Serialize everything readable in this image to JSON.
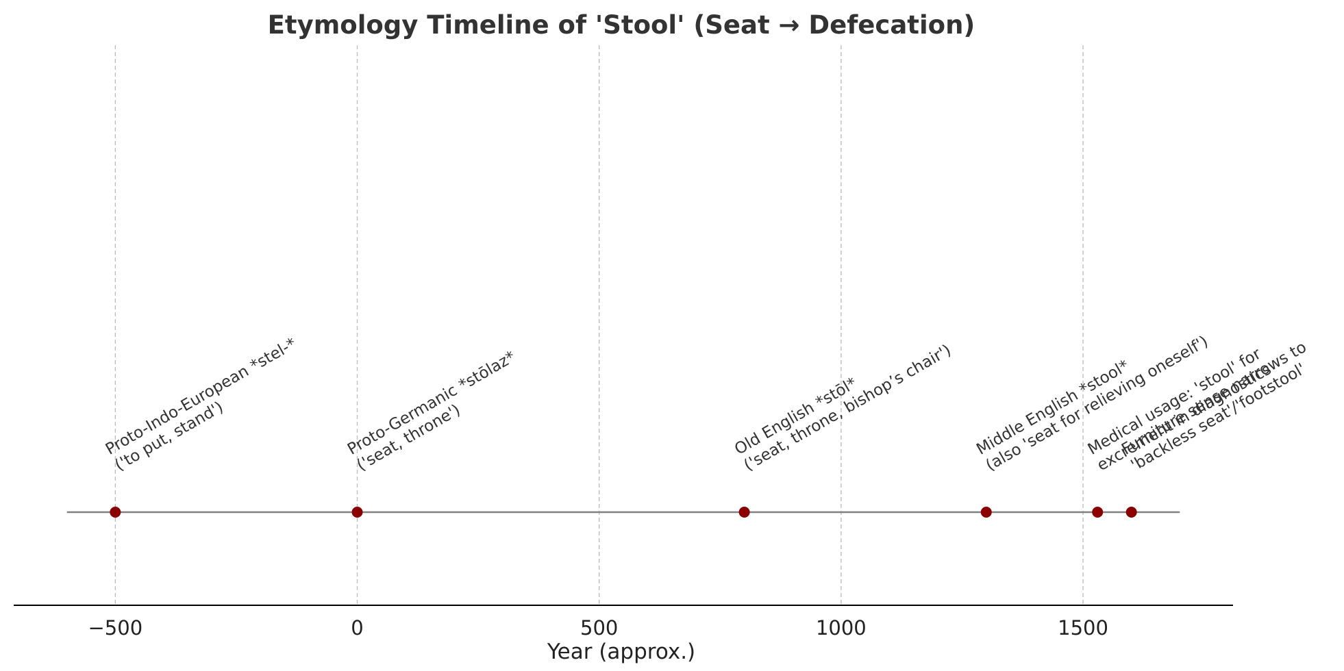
{
  "chart_data": {
    "type": "scatter",
    "title": "Etymology Timeline of 'Stool' (Seat → Defecation)",
    "xlabel": "Year (approx.)",
    "ylabel": "",
    "xlim": [
      -710,
      1810
    ],
    "xticks": [
      -500,
      0,
      500,
      1000,
      1500
    ],
    "xtick_labels": [
      "−500",
      "0",
      "500",
      "1000",
      "1500"
    ],
    "timeline_range": [
      -600,
      1700
    ],
    "grid": "vertical dashed at x ticks",
    "colors": {
      "marker": "#8b0000",
      "timeline": "#808080",
      "grid": "#bbbbbb",
      "axis": "#000000"
    },
    "events": [
      {
        "year": -500,
        "lines": [
          "Proto-Indo-European *stel-*",
          "('to put, stand')"
        ]
      },
      {
        "year": 0,
        "lines": [
          "Proto-Germanic *stōlaz*",
          "('seat, throne')"
        ]
      },
      {
        "year": 800,
        "lines": [
          "Old English *stōl*",
          "('seat, throne, bishop’s chair')"
        ]
      },
      {
        "year": 1300,
        "lines": [
          "Middle English *stool*",
          "(also 'seat for relieving oneself')"
        ]
      },
      {
        "year": 1530,
        "lines": [
          "Medical usage: 'stool' for",
          "excrement in diagnostics"
        ]
      },
      {
        "year": 1600,
        "lines": [
          "Furniture sense narrows to",
          "'backless seat'/'footstool'"
        ]
      }
    ]
  }
}
